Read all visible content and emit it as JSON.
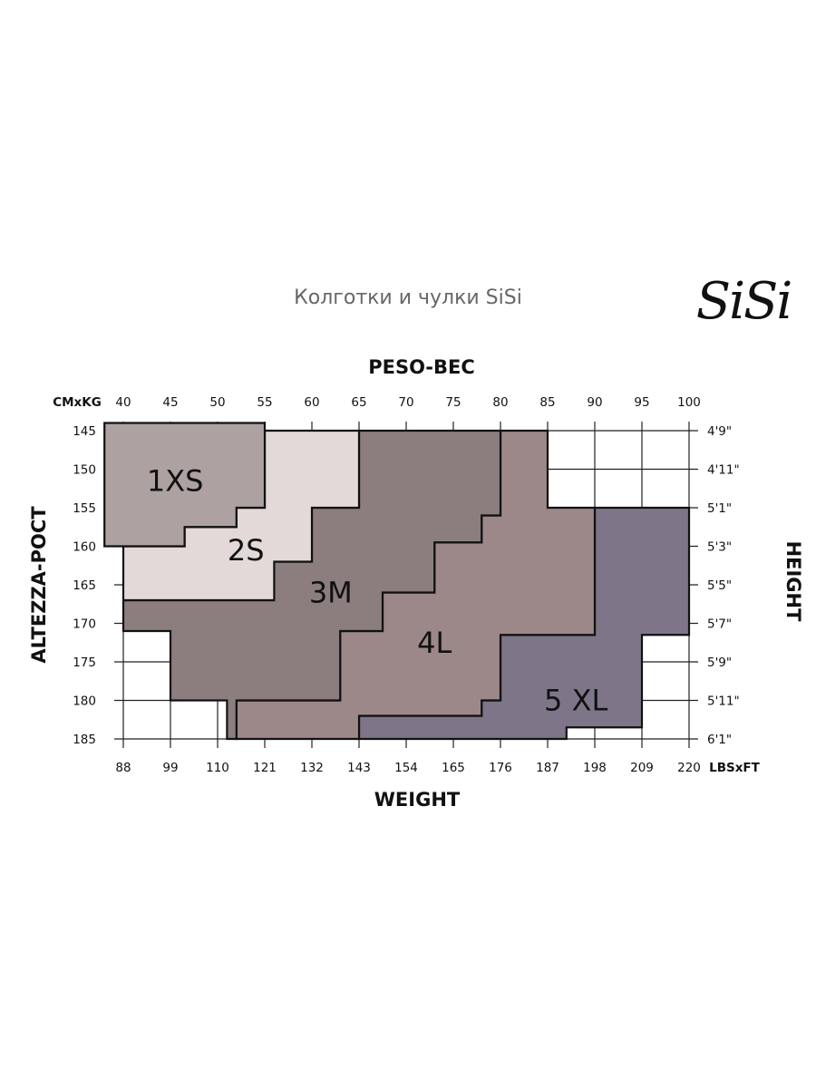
{
  "header": {
    "subtitle": "Колготки и чулки SiSi",
    "logo": "SiSi"
  },
  "chart_data": {
    "type": "heatmap",
    "title": "PESO-BEC",
    "xlabel": "WEIGHT",
    "ylabel": "ALTEZZA-РОСТ",
    "ylabel_right": "HEIGHT",
    "top_axis_unit": "CMxKG",
    "bottom_axis_unit": "LBSxFT",
    "kg_ticks": [
      "40",
      "45",
      "50",
      "55",
      "60",
      "65",
      "70",
      "75",
      "80",
      "85",
      "90",
      "95",
      "100"
    ],
    "lbs_ticks": [
      "88",
      "99",
      "110",
      "121",
      "132",
      "143",
      "154",
      "165",
      "176",
      "187",
      "198",
      "209",
      "220"
    ],
    "cm_ticks": [
      "145",
      "150",
      "155",
      "160",
      "165",
      "170",
      "175",
      "180",
      "185"
    ],
    "ft_ticks": [
      "4'9\"",
      "4'11\"",
      "5'1\"",
      "5'3\"",
      "5'5\"",
      "5'7\"",
      "5'9\"",
      "5'11\"",
      "6'1\""
    ],
    "xlim_kg": [
      40,
      100
    ],
    "ylim_cm": [
      145,
      185
    ],
    "grid": true,
    "zones": [
      {
        "name": "5 XL",
        "color": "#7e7688",
        "label_pos": [
          88,
          180
        ],
        "polygon_kg_cm": [
          [
            90,
            155
          ],
          [
            100,
            155
          ],
          [
            100,
            171.5
          ],
          [
            95,
            171.5
          ],
          [
            95,
            183.5
          ],
          [
            87,
            183.5
          ],
          [
            87,
            185
          ],
          [
            65,
            185
          ],
          [
            65,
            182
          ],
          [
            78,
            182
          ],
          [
            78,
            180
          ],
          [
            80,
            180
          ],
          [
            80,
            171.5
          ],
          [
            90,
            171.5
          ]
        ]
      },
      {
        "name": "4L",
        "color": "#9d8889",
        "label_pos": [
          73,
          172.5
        ],
        "polygon_kg_cm": [
          [
            80,
            145
          ],
          [
            85,
            145
          ],
          [
            85,
            155
          ],
          [
            90,
            155
          ],
          [
            90,
            171.5
          ],
          [
            80,
            171.5
          ],
          [
            80,
            180
          ],
          [
            78,
            180
          ],
          [
            78,
            182
          ],
          [
            65,
            182
          ],
          [
            65,
            185
          ],
          [
            52,
            185
          ],
          [
            52,
            180
          ],
          [
            63,
            180
          ],
          [
            63,
            171
          ],
          [
            67.5,
            171
          ],
          [
            67.5,
            166
          ],
          [
            73,
            166
          ],
          [
            73,
            159.5
          ],
          [
            78,
            159.5
          ],
          [
            78,
            156
          ],
          [
            80,
            156
          ]
        ]
      },
      {
        "name": "3M",
        "color": "#8c7e7e",
        "label_pos": [
          62,
          166
        ],
        "polygon_kg_cm": [
          [
            65,
            145
          ],
          [
            80,
            145
          ],
          [
            80,
            156
          ],
          [
            78,
            156
          ],
          [
            78,
            159.5
          ],
          [
            73,
            159.5
          ],
          [
            73,
            166
          ],
          [
            67.5,
            166
          ],
          [
            67.5,
            171
          ],
          [
            63,
            171
          ],
          [
            63,
            180
          ],
          [
            52,
            180
          ],
          [
            52,
            185
          ],
          [
            51,
            185
          ],
          [
            51,
            180
          ],
          [
            45,
            180
          ],
          [
            45,
            171
          ],
          [
            40,
            171
          ],
          [
            40,
            167
          ],
          [
            56,
            167
          ],
          [
            56,
            162
          ],
          [
            60,
            162
          ],
          [
            60,
            155
          ],
          [
            65,
            155
          ]
        ]
      },
      {
        "name": "2S",
        "color": "#e3d9d8",
        "label_pos": [
          53,
          160.5
        ],
        "polygon_kg_cm": [
          [
            55,
            145
          ],
          [
            65,
            145
          ],
          [
            65,
            155
          ],
          [
            60,
            155
          ],
          [
            60,
            162
          ],
          [
            56,
            162
          ],
          [
            56,
            167
          ],
          [
            40,
            167
          ],
          [
            40,
            160
          ],
          [
            46.5,
            160
          ],
          [
            46.5,
            157.5
          ],
          [
            52,
            157.5
          ],
          [
            52,
            155
          ],
          [
            55,
            155
          ]
        ]
      },
      {
        "name": "1XS",
        "color": "#ada1a1",
        "label_pos": [
          45.5,
          151.5
        ],
        "polygon_kg_cm": [
          [
            38,
            144
          ],
          [
            55,
            144
          ],
          [
            55,
            155
          ],
          [
            52,
            155
          ],
          [
            52,
            157.5
          ],
          [
            46.5,
            157.5
          ],
          [
            46.5,
            160
          ],
          [
            44,
            160
          ],
          [
            44,
            160
          ],
          [
            38,
            160
          ]
        ]
      }
    ]
  }
}
